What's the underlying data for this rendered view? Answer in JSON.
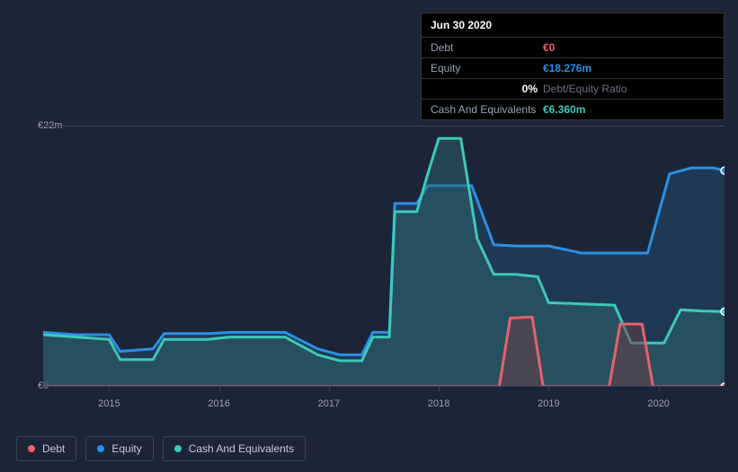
{
  "chart": {
    "type": "area-line",
    "background_color": "#1c2536",
    "grid_color": "#3a4256",
    "label_color": "#9aa3b2",
    "label_fontsize": 11,
    "currency_prefix": "€",
    "y_axis": {
      "min": 0,
      "max": 22,
      "ticks": [
        {
          "value": 0,
          "label": "€0"
        },
        {
          "value": 22,
          "label": "€22m"
        }
      ]
    },
    "x_axis": {
      "domain_min": 2014.4,
      "domain_max": 2020.6,
      "ticks": [
        {
          "value": 2015,
          "label": "2015"
        },
        {
          "value": 2016,
          "label": "2016"
        },
        {
          "value": 2017,
          "label": "2017"
        },
        {
          "value": 2018,
          "label": "2018"
        },
        {
          "value": 2019,
          "label": "2019"
        },
        {
          "value": 2020,
          "label": "2020"
        }
      ]
    },
    "series": [
      {
        "key": "equity",
        "label": "Equity",
        "stroke": "#2a8fe6",
        "fill": "#234a6e",
        "fill_opacity": 0.55,
        "line_width": 3,
        "marker_last": true,
        "points": [
          [
            2014.4,
            4.6
          ],
          [
            2014.7,
            4.4
          ],
          [
            2015.0,
            4.4
          ],
          [
            2015.1,
            3.0
          ],
          [
            2015.4,
            3.2
          ],
          [
            2015.5,
            4.5
          ],
          [
            2015.9,
            4.5
          ],
          [
            2016.1,
            4.6
          ],
          [
            2016.3,
            4.6
          ],
          [
            2016.6,
            4.6
          ],
          [
            2016.9,
            3.2
          ],
          [
            2017.1,
            2.7
          ],
          [
            2017.3,
            2.7
          ],
          [
            2017.4,
            4.6
          ],
          [
            2017.55,
            4.6
          ],
          [
            2017.6,
            15.5
          ],
          [
            2017.8,
            15.5
          ],
          [
            2017.9,
            17.0
          ],
          [
            2018.1,
            17.0
          ],
          [
            2018.3,
            17.0
          ],
          [
            2018.5,
            12.0
          ],
          [
            2018.7,
            11.9
          ],
          [
            2019.0,
            11.9
          ],
          [
            2019.3,
            11.3
          ],
          [
            2019.6,
            11.3
          ],
          [
            2019.9,
            11.3
          ],
          [
            2020.1,
            18.0
          ],
          [
            2020.3,
            18.5
          ],
          [
            2020.5,
            18.5
          ],
          [
            2020.6,
            18.276
          ]
        ]
      },
      {
        "key": "cash",
        "label": "Cash And Equivalents",
        "stroke": "#3dc9b7",
        "fill": "#2f6d6e",
        "fill_opacity": 0.45,
        "line_width": 3,
        "marker_last": true,
        "points": [
          [
            2014.4,
            4.4
          ],
          [
            2014.7,
            4.2
          ],
          [
            2015.0,
            4.0
          ],
          [
            2015.1,
            2.3
          ],
          [
            2015.4,
            2.3
          ],
          [
            2015.5,
            4.0
          ],
          [
            2015.9,
            4.0
          ],
          [
            2016.1,
            4.2
          ],
          [
            2016.3,
            4.2
          ],
          [
            2016.6,
            4.2
          ],
          [
            2016.9,
            2.7
          ],
          [
            2017.1,
            2.2
          ],
          [
            2017.3,
            2.2
          ],
          [
            2017.4,
            4.2
          ],
          [
            2017.55,
            4.2
          ],
          [
            2017.6,
            14.8
          ],
          [
            2017.8,
            14.8
          ],
          [
            2017.9,
            18.0
          ],
          [
            2018.0,
            21.0
          ],
          [
            2018.2,
            21.0
          ],
          [
            2018.35,
            12.5
          ],
          [
            2018.5,
            9.5
          ],
          [
            2018.7,
            9.5
          ],
          [
            2018.9,
            9.3
          ],
          [
            2019.0,
            7.1
          ],
          [
            2019.3,
            7.0
          ],
          [
            2019.6,
            6.9
          ],
          [
            2019.75,
            3.7
          ],
          [
            2019.9,
            3.7
          ],
          [
            2020.05,
            3.7
          ],
          [
            2020.2,
            6.5
          ],
          [
            2020.4,
            6.4
          ],
          [
            2020.6,
            6.36
          ]
        ]
      },
      {
        "key": "debt",
        "label": "Debt",
        "stroke": "#e7616e",
        "fill": "#6b3a45",
        "fill_opacity": 0.5,
        "line_width": 3,
        "marker_last": true,
        "points": [
          [
            2014.4,
            0
          ],
          [
            2018.55,
            0
          ],
          [
            2018.65,
            5.8
          ],
          [
            2018.85,
            5.9
          ],
          [
            2018.95,
            0
          ],
          [
            2019.55,
            0
          ],
          [
            2019.65,
            5.3
          ],
          [
            2019.85,
            5.3
          ],
          [
            2019.95,
            0
          ],
          [
            2020.6,
            0
          ]
        ]
      }
    ],
    "legend": {
      "position": "bottom-left",
      "items": [
        {
          "key": "debt",
          "label": "Debt",
          "color": "#e7616e"
        },
        {
          "key": "equity",
          "label": "Equity",
          "color": "#2a8fe6"
        },
        {
          "key": "cash",
          "label": "Cash And Equivalents",
          "color": "#3dc9b7"
        }
      ]
    }
  },
  "tooltip": {
    "date": "Jun 30 2020",
    "rows": [
      {
        "label": "Debt",
        "value": "€0",
        "color_class": "c-debt"
      },
      {
        "label": "Equity",
        "value": "€18.276m",
        "color_class": "c-equity"
      }
    ],
    "ratio": {
      "value": "0%",
      "label": "Debt/Equity Ratio"
    },
    "cash_row": {
      "label": "Cash And Equivalents",
      "value": "€6.360m",
      "color_class": "c-cash"
    }
  }
}
